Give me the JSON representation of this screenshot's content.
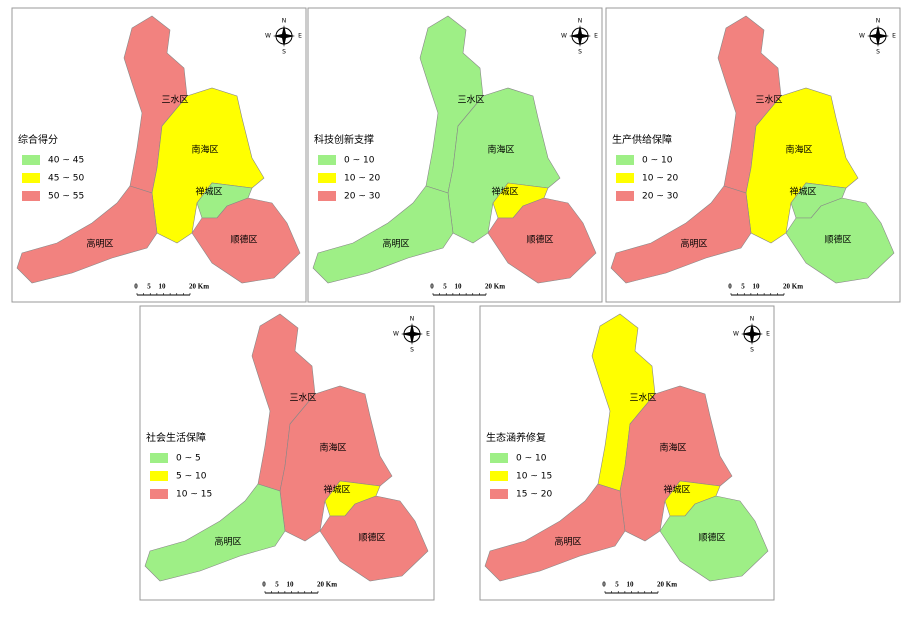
{
  "compass": [
    "N",
    "S",
    "W",
    "E"
  ],
  "scale": [
    "0",
    "5",
    "10",
    "20 Km"
  ],
  "maps": [
    {
      "legend": {
        "title": "综合得分",
        "items": [
          {
            "label": "40 ~ 45",
            "color": "#9eef86"
          },
          {
            "label": "45 ~ 50",
            "color": "#ffff00"
          },
          {
            "label": "50 ~ 55",
            "color": "#f2827f"
          }
        ]
      },
      "districts": [
        {
          "name": "三水区",
          "color": "#f2827f"
        },
        {
          "name": "南海区",
          "color": "#ffff00"
        },
        {
          "name": "禅城区",
          "color": "#9eef86"
        },
        {
          "name": "高明区",
          "color": "#f2827f"
        },
        {
          "name": "顺德区",
          "color": "#f2827f"
        }
      ]
    },
    {
      "legend": {
        "title": "科技创新支撑",
        "items": [
          {
            "label": "0 ~ 10",
            "color": "#9eef86"
          },
          {
            "label": "10 ~ 20",
            "color": "#ffff00"
          },
          {
            "label": "20 ~ 30",
            "color": "#f2827f"
          }
        ]
      },
      "districts": [
        {
          "name": "三水区",
          "color": "#9eef86"
        },
        {
          "name": "南海区",
          "color": "#9eef86"
        },
        {
          "name": "禅城区",
          "color": "#ffff00"
        },
        {
          "name": "高明区",
          "color": "#9eef86"
        },
        {
          "name": "顺德区",
          "color": "#f2827f"
        }
      ]
    },
    {
      "legend": {
        "title": "生产供给保障",
        "items": [
          {
            "label": "0 ~ 10",
            "color": "#9eef86"
          },
          {
            "label": "10 ~ 20",
            "color": "#ffff00"
          },
          {
            "label": "20 ~ 30",
            "color": "#f2827f"
          }
        ]
      },
      "districts": [
        {
          "name": "三水区",
          "color": "#f2827f"
        },
        {
          "name": "南海区",
          "color": "#ffff00"
        },
        {
          "name": "禅城区",
          "color": "#9eef86"
        },
        {
          "name": "高明区",
          "color": "#f2827f"
        },
        {
          "name": "顺德区",
          "color": "#9eef86"
        }
      ]
    },
    {
      "legend": {
        "title": "社会生活保障",
        "items": [
          {
            "label": "0 ~ 5",
            "color": "#9eef86"
          },
          {
            "label": "5 ~ 10",
            "color": "#ffff00"
          },
          {
            "label": "10 ~ 15",
            "color": "#f2827f"
          }
        ]
      },
      "districts": [
        {
          "name": "三水区",
          "color": "#f2827f"
        },
        {
          "name": "南海区",
          "color": "#f2827f"
        },
        {
          "name": "禅城区",
          "color": "#ffff00"
        },
        {
          "name": "高明区",
          "color": "#9eef86"
        },
        {
          "name": "顺德区",
          "color": "#f2827f"
        }
      ]
    },
    {
      "legend": {
        "title": "生态涵养修复",
        "items": [
          {
            "label": "0 ~ 10",
            "color": "#9eef86"
          },
          {
            "label": "10 ~ 15",
            "color": "#ffff00"
          },
          {
            "label": "15 ~ 20",
            "color": "#f2827f"
          }
        ]
      },
      "districts": [
        {
          "name": "三水区",
          "color": "#ffff00"
        },
        {
          "name": "南海区",
          "color": "#f2827f"
        },
        {
          "name": "禅城区",
          "color": "#ffff00"
        },
        {
          "name": "高明区",
          "color": "#f2827f"
        },
        {
          "name": "顺德区",
          "color": "#9eef86"
        }
      ]
    }
  ]
}
